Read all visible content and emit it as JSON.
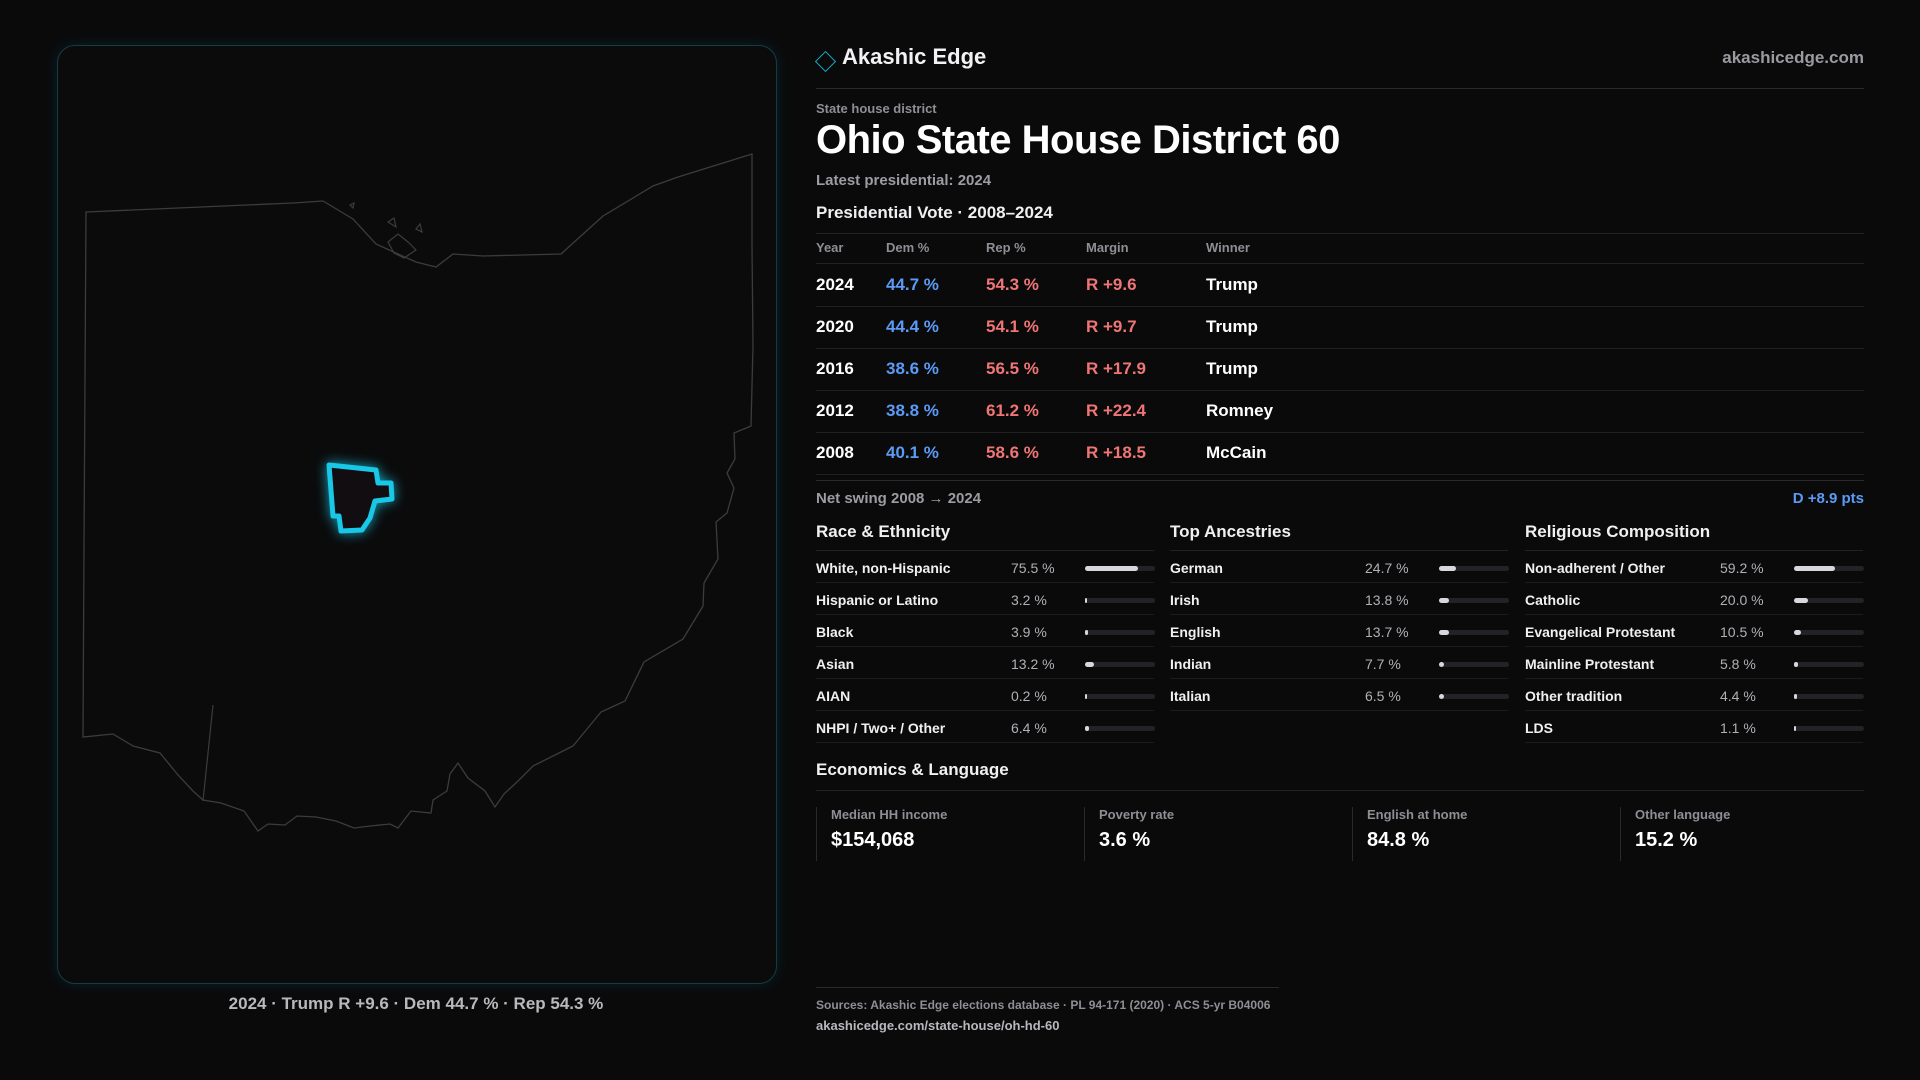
{
  "brand": {
    "name": "Akashic Edge",
    "url": "akashicedge.com"
  },
  "map": {
    "caption": "2024 · Trump R +9.6 · Dem 44.7 % · Rep 54.3 %",
    "highlight_color": "#18c8e6"
  },
  "header": {
    "kicker": "State house district",
    "title": "Ohio State House District 60",
    "latest": "Latest presidential: 2024"
  },
  "presidential": {
    "heading": "Presidential Vote · 2008–2024",
    "columns": [
      "Year",
      "Dem %",
      "Rep %",
      "Margin",
      "Winner"
    ],
    "rows": [
      {
        "year": "2024",
        "dem": "44.7 %",
        "rep": "54.3 %",
        "margin": "R +9.6",
        "winner": "Trump"
      },
      {
        "year": "2020",
        "dem": "44.4 %",
        "rep": "54.1 %",
        "margin": "R +9.7",
        "winner": "Trump"
      },
      {
        "year": "2016",
        "dem": "38.6 %",
        "rep": "56.5 %",
        "margin": "R +17.9",
        "winner": "Trump"
      },
      {
        "year": "2012",
        "dem": "38.8 %",
        "rep": "61.2 %",
        "margin": "R +22.4",
        "winner": "Romney"
      },
      {
        "year": "2008",
        "dem": "40.1 %",
        "rep": "58.6 %",
        "margin": "R +18.5",
        "winner": "McCain"
      }
    ],
    "swing_label": "Net swing 2008 → 2024",
    "swing_value": "D +8.9 pts"
  },
  "race": {
    "heading": "Race & Ethnicity",
    "items": [
      {
        "label": "White, non-Hispanic",
        "value": "75.5 %",
        "pct": 75.5
      },
      {
        "label": "Hispanic or Latino",
        "value": "3.2 %",
        "pct": 3.2
      },
      {
        "label": "Black",
        "value": "3.9 %",
        "pct": 3.9
      },
      {
        "label": "Asian",
        "value": "13.2 %",
        "pct": 13.2
      },
      {
        "label": "AIAN",
        "value": "0.2 %",
        "pct": 0.2
      },
      {
        "label": "NHPI / Two+ / Other",
        "value": "6.4 %",
        "pct": 6.4
      }
    ]
  },
  "ancestry": {
    "heading": "Top Ancestries",
    "items": [
      {
        "label": "German",
        "value": "24.7 %",
        "pct": 24.7
      },
      {
        "label": "Irish",
        "value": "13.8 %",
        "pct": 13.8
      },
      {
        "label": "English",
        "value": "13.7 %",
        "pct": 13.7
      },
      {
        "label": "Indian",
        "value": "7.7 %",
        "pct": 7.7
      },
      {
        "label": "Italian",
        "value": "6.5 %",
        "pct": 6.5
      }
    ]
  },
  "religion": {
    "heading": "Religious Composition",
    "items": [
      {
        "label": "Non-adherent / Other",
        "value": "59.2 %",
        "pct": 59.2
      },
      {
        "label": "Catholic",
        "value": "20.0 %",
        "pct": 20.0
      },
      {
        "label": "Evangelical Protestant",
        "value": "10.5 %",
        "pct": 10.5
      },
      {
        "label": "Mainline Protestant",
        "value": "5.8 %",
        "pct": 5.8
      },
      {
        "label": "Other tradition",
        "value": "4.4 %",
        "pct": 4.4
      },
      {
        "label": "LDS",
        "value": "1.1 %",
        "pct": 1.1
      }
    ]
  },
  "economics": {
    "heading": "Economics & Language",
    "items": [
      {
        "label": "Median HH income",
        "value": "$154,068"
      },
      {
        "label": "Poverty rate",
        "value": "3.6 %"
      },
      {
        "label": "English at home",
        "value": "84.8 %"
      },
      {
        "label": "Other language",
        "value": "15.2 %"
      }
    ]
  },
  "sources": {
    "line": "Sources: Akashic Edge elections database · PL 94-171 (2020) · ACS 5-yr B04006",
    "url": "akashicedge.com/state-house/oh-hd-60"
  }
}
